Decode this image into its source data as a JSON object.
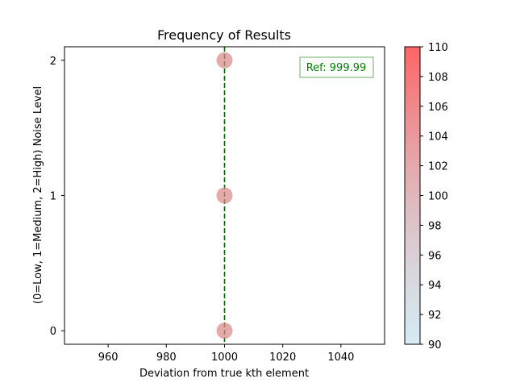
{
  "chart_data": {
    "type": "scatter",
    "title": "Frequency of Results",
    "xlabel": "Deviation from true kth element",
    "ylabel": "(0=Low, 1=Medium, 2=High) Noise Level",
    "xlim": [
      945,
      1055
    ],
    "ylim": [
      -0.1,
      2.1
    ],
    "xticks": [
      960,
      980,
      1000,
      1020,
      1040
    ],
    "yticks": [
      0,
      1,
      2
    ],
    "points": [
      {
        "x": 1000,
        "y": 0,
        "c": 100
      },
      {
        "x": 1000,
        "y": 1,
        "c": 100
      },
      {
        "x": 1000,
        "y": 2,
        "c": 100
      }
    ],
    "reference_line": {
      "x": 1000,
      "color": "#006400",
      "style": "dashed"
    },
    "annotation": {
      "text": "Ref: 999.99",
      "color": "#008000",
      "position": "top-right"
    },
    "colorbar": {
      "range": [
        90,
        110
      ],
      "ticks": [
        90,
        92,
        94,
        96,
        98,
        100,
        102,
        104,
        106,
        108,
        110
      ],
      "colors": [
        "#add8e6",
        "#ff6464"
      ]
    },
    "grid": false,
    "legend": false
  }
}
